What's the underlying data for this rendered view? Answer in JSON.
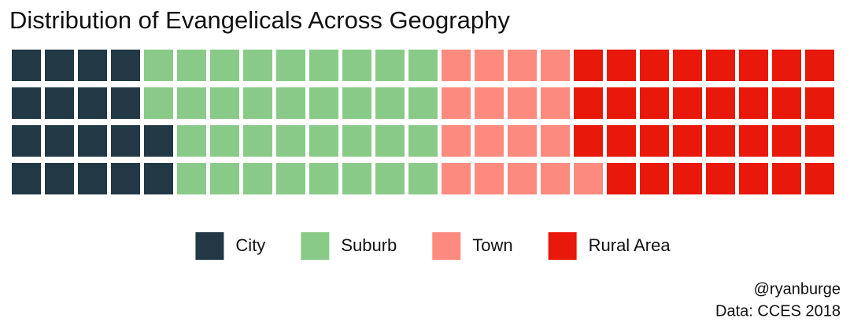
{
  "chart_data": {
    "type": "waffle",
    "title": "Distribution of Evangelicals Across Geography",
    "categories": [
      "City",
      "Suburb",
      "Town",
      "Rural Area"
    ],
    "values": [
      18,
      34,
      17,
      31
    ],
    "colors": [
      "#223845",
      "#8aca88",
      "#fc8a7f",
      "#e8180b"
    ],
    "caption": [
      "@ryanburge",
      "Data: CCES 2018"
    ]
  }
}
